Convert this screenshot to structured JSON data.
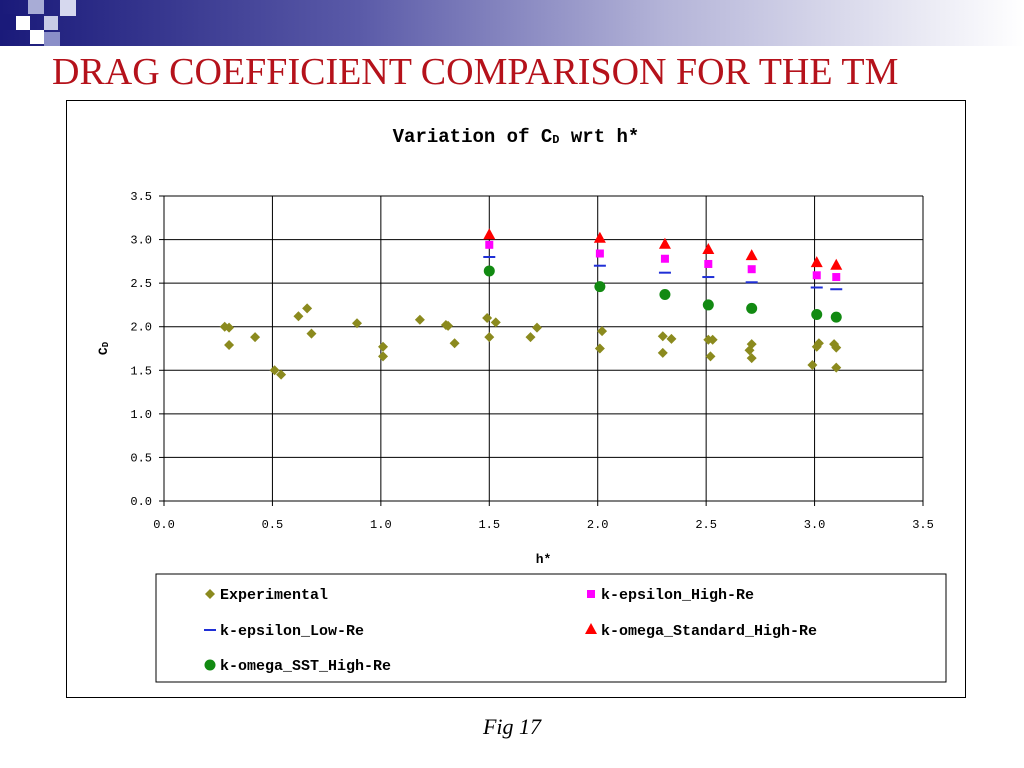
{
  "slide": {
    "title": "DRAG COEFFICIENT COMPARISON FOR THE TM",
    "caption": "Fig 17",
    "title_color": "#b5121b"
  },
  "chart_data": {
    "type": "scatter",
    "title": "Variation of C",
    "title_sub": "D",
    "title_suffix": " wrt h*",
    "xlabel": "h*",
    "ylabel": "C",
    "ylabel_sub": "D",
    "xlim": [
      0,
      3.5
    ],
    "ylim": [
      0,
      3.5
    ],
    "xticks": [
      "0.0",
      "0.5",
      "1.0",
      "1.5",
      "2.0",
      "2.5",
      "3.0",
      "3.5"
    ],
    "yticks": [
      "0.0",
      "0.5",
      "1.0",
      "1.5",
      "2.0",
      "2.5",
      "3.0",
      "3.5"
    ],
    "grid": true,
    "legend_position": "bottom",
    "series": [
      {
        "name": "Experimental",
        "marker": "diamond",
        "color": "#8b8a1e",
        "points": [
          [
            0.28,
            2.0
          ],
          [
            0.3,
            1.99
          ],
          [
            0.3,
            1.79
          ],
          [
            0.42,
            1.88
          ],
          [
            0.51,
            1.5
          ],
          [
            0.54,
            1.45
          ],
          [
            0.62,
            2.12
          ],
          [
            0.66,
            2.21
          ],
          [
            0.68,
            1.92
          ],
          [
            0.89,
            2.04
          ],
          [
            1.01,
            1.77
          ],
          [
            1.01,
            1.66
          ],
          [
            1.18,
            2.08
          ],
          [
            1.3,
            2.02
          ],
          [
            1.31,
            2.01
          ],
          [
            1.34,
            1.81
          ],
          [
            1.49,
            2.1
          ],
          [
            1.5,
            1.88
          ],
          [
            1.53,
            2.05
          ],
          [
            1.69,
            1.88
          ],
          [
            1.72,
            1.99
          ],
          [
            2.02,
            1.95
          ],
          [
            2.01,
            1.75
          ],
          [
            2.3,
            1.89
          ],
          [
            2.3,
            1.7
          ],
          [
            2.34,
            1.86
          ],
          [
            2.51,
            1.85
          ],
          [
            2.53,
            1.85
          ],
          [
            2.52,
            1.66
          ],
          [
            2.71,
            1.8
          ],
          [
            2.7,
            1.73
          ],
          [
            2.71,
            1.64
          ],
          [
            2.99,
            1.56
          ],
          [
            3.02,
            1.81
          ],
          [
            3.01,
            1.77
          ],
          [
            3.09,
            1.8
          ],
          [
            3.1,
            1.76
          ],
          [
            3.1,
            1.53
          ]
        ]
      },
      {
        "name": "k-epsilon_High-Re",
        "marker": "square",
        "color": "#ff00ff",
        "points": [
          [
            1.5,
            2.94
          ],
          [
            2.01,
            2.84
          ],
          [
            2.31,
            2.78
          ],
          [
            2.51,
            2.72
          ],
          [
            2.71,
            2.66
          ],
          [
            3.01,
            2.59
          ],
          [
            3.1,
            2.57
          ]
        ]
      },
      {
        "name": "k-epsilon_Low-Re",
        "marker": "dash",
        "color": "#1f2fd6",
        "points": [
          [
            1.5,
            2.8
          ],
          [
            2.01,
            2.7
          ],
          [
            2.31,
            2.62
          ],
          [
            2.51,
            2.57
          ],
          [
            2.71,
            2.51
          ],
          [
            3.01,
            2.45
          ],
          [
            3.1,
            2.43
          ]
        ]
      },
      {
        "name": "k-omega_Standard_High-Re",
        "marker": "triangle",
        "color": "#ff0000",
        "points": [
          [
            1.5,
            3.05
          ],
          [
            2.01,
            3.01
          ],
          [
            2.31,
            2.94
          ],
          [
            2.51,
            2.88
          ],
          [
            2.71,
            2.81
          ],
          [
            3.01,
            2.73
          ],
          [
            3.1,
            2.7
          ]
        ]
      },
      {
        "name": "k-omega_SST_High-Re",
        "marker": "circle",
        "color": "#128a12",
        "points": [
          [
            1.5,
            2.64
          ],
          [
            2.01,
            2.46
          ],
          [
            2.31,
            2.37
          ],
          [
            2.51,
            2.25
          ],
          [
            2.71,
            2.21
          ],
          [
            3.01,
            2.14
          ],
          [
            3.1,
            2.11
          ]
        ]
      }
    ]
  }
}
